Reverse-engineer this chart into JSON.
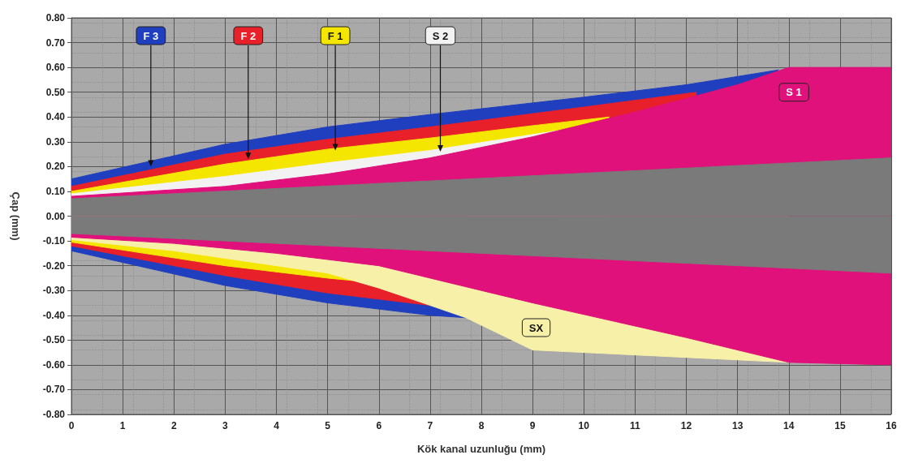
{
  "chart_data": {
    "type": "area",
    "xlabel": "Kök kanal uzunluğu (mm)",
    "ylabel": "Çap (mm)",
    "xlim": [
      0,
      16
    ],
    "xticks": [
      0,
      1,
      2,
      3,
      4,
      5,
      6,
      7,
      8,
      9,
      10,
      11,
      12,
      13,
      14,
      15,
      16
    ],
    "ylim": [
      -0.8,
      0.8
    ],
    "yticks": [
      {
        "value": -0.8,
        "label": "-0.80"
      },
      {
        "value": -0.7,
        "label": "-0.70"
      },
      {
        "value": -0.6,
        "label": "-0.60"
      },
      {
        "value": -0.5,
        "label": "-0.50"
      },
      {
        "value": -0.4,
        "label": "-0.40"
      },
      {
        "value": -0.3,
        "label": "-0.30"
      },
      {
        "value": -0.2,
        "label": "-0.20"
      },
      {
        "value": -0.1,
        "label": "-0.10"
      },
      {
        "value": 0,
        "label": "0.00"
      },
      {
        "value": 0.1,
        "label": "0.10"
      },
      {
        "value": 0.2,
        "label": "0.20"
      },
      {
        "value": 0.3,
        "label": "0.30"
      },
      {
        "value": 0.4,
        "label": "0.40"
      },
      {
        "value": 0.5,
        "label": "0.50"
      },
      {
        "value": 0.6,
        "label": "0.60"
      },
      {
        "value": 0.7,
        "label": "0.70"
      },
      {
        "value": 0.8,
        "label": "0.80"
      }
    ],
    "grid": true,
    "series": [
      {
        "color": "#1f3fbf",
        "x": [
          0,
          3,
          5,
          7,
          10,
          12,
          13.8
        ],
        "values": [
          0.15,
          0.29,
          0.36,
          0.41,
          0.48,
          0.53,
          0.59
        ]
      },
      {
        "color": "#e8202a",
        "x": [
          0,
          3,
          5,
          7,
          10,
          12.2
        ],
        "values": [
          0.12,
          0.25,
          0.31,
          0.36,
          0.44,
          0.5
        ]
      },
      {
        "color": "#f5e600",
        "x": [
          0,
          3,
          5,
          7,
          9,
          10.5
        ],
        "values": [
          0.1,
          0.21,
          0.27,
          0.315,
          0.365,
          0.4
        ]
      },
      {
        "color": "#f2f2f2",
        "x": [
          0,
          3,
          5,
          7,
          9.5
        ],
        "values": [
          0.09,
          0.16,
          0.215,
          0.265,
          0.345
        ]
      },
      {
        "color": "#e0117a",
        "x": [
          0,
          3,
          5,
          7,
          9,
          11,
          13,
          14,
          16
        ],
        "values": [
          0.08,
          0.12,
          0.17,
          0.235,
          0.32,
          0.42,
          0.53,
          0.6,
          0.6
        ]
      },
      {
        "color": "#1f3fbf",
        "x": [
          0,
          3,
          5,
          7,
          7.7
        ],
        "values": [
          -0.14,
          -0.28,
          -0.35,
          -0.4,
          -0.41
        ]
      },
      {
        "color": "#e8202a",
        "x": [
          0,
          3,
          5,
          7
        ],
        "values": [
          -0.12,
          -0.24,
          -0.31,
          -0.36
        ]
      },
      {
        "color": "#f5e600",
        "x": [
          0,
          3,
          5,
          5.5
        ],
        "values": [
          -0.105,
          -0.2,
          -0.25,
          -0.26
        ]
      },
      {
        "color": "#f7f0a8",
        "x": [
          0,
          2,
          4,
          5,
          6,
          7,
          7.7,
          9,
          14
        ],
        "values": [
          -0.095,
          -0.14,
          -0.2,
          -0.23,
          -0.29,
          -0.36,
          -0.41,
          -0.54,
          -0.59
        ]
      },
      {
        "color": "#e0117a",
        "x": [
          0,
          2,
          4,
          6,
          7,
          9,
          12,
          14,
          16
        ],
        "values": [
          -0.085,
          -0.11,
          -0.15,
          -0.2,
          -0.25,
          -0.35,
          -0.49,
          -0.59,
          -0.6
        ]
      },
      {
        "color": "#7a7a7a",
        "x": [
          0,
          16
        ],
        "values": [
          0.07,
          0.235
        ]
      },
      {
        "color": "#7a7a7a",
        "x": [
          0,
          16
        ],
        "values": [
          -0.07,
          -0.23
        ]
      }
    ],
    "annotations": [
      {
        "text": "F 3",
        "x": 1.55,
        "y": 0.2
      },
      {
        "text": "F 2",
        "x": 3.45,
        "y": 0.23
      },
      {
        "text": "F 1",
        "x": 5.15,
        "y": 0.265
      },
      {
        "text": "S 2",
        "x": 7.2,
        "y": 0.26
      },
      {
        "text": "S 1",
        "x": 14.1,
        "y": 0.5
      },
      {
        "text": "SX",
        "x": 9.07,
        "y": -0.45
      }
    ]
  }
}
